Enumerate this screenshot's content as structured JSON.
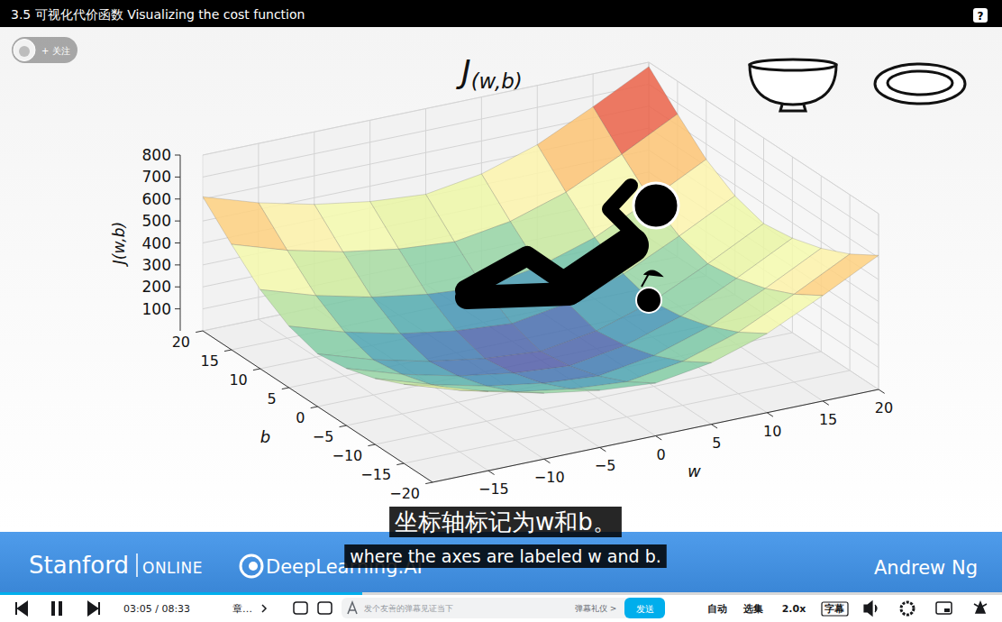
{
  "player": {
    "title": "3.5 可视化代价函数 Visualizing the cost function",
    "help": "?",
    "follow": "+ 关注",
    "time": "03:05 / 08:33",
    "chapter": "章…",
    "danmaku_placeholder": "发个友善的弹幕见证当下",
    "danmaku_etiquette": "弹幕礼仪 >",
    "send": "发送",
    "controls": [
      "自动",
      "选集",
      "2.0x",
      "字幕"
    ]
  },
  "slide": {
    "heading": {
      "base": "J",
      "subscript": "(w,b)"
    },
    "banner": {
      "left": "Stanford",
      "left_suffix": "ONLINE",
      "center": "DeepLearning.AI",
      "right": "Andrew Ng"
    }
  },
  "subtitles": {
    "zh": "坐标轴标记为w和b。",
    "en": "where the axes are labeled w and b."
  },
  "chart_data": {
    "type": "surface",
    "x_label": "w",
    "y_label": "b",
    "z_label": "J(w,b)",
    "x": [
      -20,
      -15,
      -10,
      -5,
      0,
      5,
      10,
      15,
      20
    ],
    "y": [
      -20,
      -15,
      -10,
      -5,
      0,
      5,
      10,
      15,
      20
    ],
    "z": [
      [
        440,
        360,
        300,
        260,
        240,
        280,
        360,
        480,
        610
      ],
      [
        360,
        280,
        220,
        180,
        160,
        200,
        280,
        400,
        530
      ],
      [
        300,
        220,
        160,
        120,
        100,
        140,
        220,
        340,
        470
      ],
      [
        260,
        180,
        120,
        80,
        60,
        100,
        180,
        300,
        430
      ],
      [
        240,
        160,
        100,
        60,
        40,
        80,
        160,
        280,
        410
      ],
      [
        280,
        200,
        140,
        100,
        80,
        120,
        200,
        320,
        450
      ],
      [
        360,
        280,
        220,
        180,
        160,
        200,
        280,
        400,
        530
      ],
      [
        480,
        400,
        340,
        300,
        280,
        320,
        400,
        520,
        650
      ],
      [
        610,
        530,
        470,
        430,
        410,
        450,
        530,
        650,
        780
      ]
    ],
    "xlim": [
      -20,
      20
    ],
    "ylim": [
      -20,
      20
    ],
    "zlim": [
      0,
      800
    ],
    "xticks": [
      {
        "value": -15,
        "label": "−15"
      },
      {
        "value": -10,
        "label": "−10"
      },
      {
        "value": -5,
        "label": "−5"
      },
      0,
      5,
      10,
      15,
      20
    ],
    "yticks": [
      {
        "value": -20,
        "label": "−20"
      },
      {
        "value": -15,
        "label": "−15"
      },
      {
        "value": -10,
        "label": "−10"
      },
      {
        "value": -5,
        "label": "−5"
      },
      0,
      5,
      10,
      15,
      20
    ],
    "zticks": [
      100,
      200,
      300,
      400,
      500,
      600,
      700,
      800
    ],
    "grid": true
  }
}
